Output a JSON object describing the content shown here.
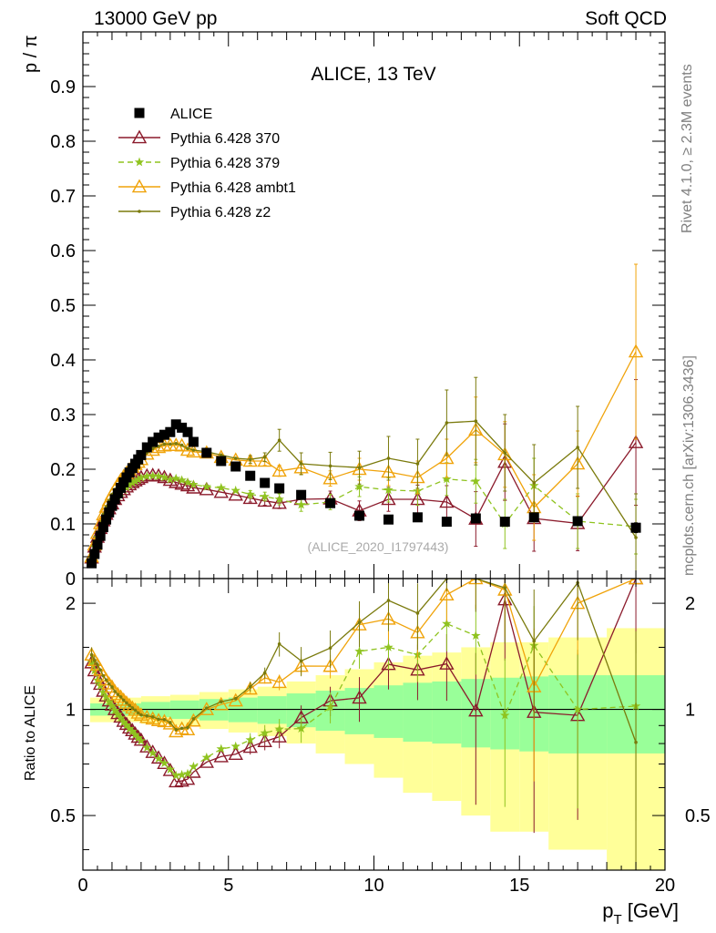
{
  "header": {
    "left": "13000 GeV pp",
    "right": "Soft QCD",
    "rivet_label": "Rivet 4.1.0, ≥ 2.3M events",
    "mcplots_label": "mcplots.cern.ch [arXiv:1306.3436]"
  },
  "chart_data": [
    {
      "type": "scatter",
      "title": "ALICE, 13 TeV",
      "ylabel": "p / π",
      "xlabel": "",
      "analysis_tag": "(ALICE_2020_I1797443)",
      "xlim": [
        0,
        20
      ],
      "ylim": [
        0,
        1.0
      ],
      "yticks": [
        0,
        0.1,
        0.2,
        0.3,
        0.4,
        0.5,
        0.6,
        0.7,
        0.8,
        0.9
      ],
      "ytick_labels": [
        "0",
        "0.1",
        "0.2",
        "0.3",
        "0.4",
        "0.5",
        "0.6",
        "0.7",
        "0.8",
        "0.9"
      ],
      "legend": [
        "ALICE",
        "Pythia 6.428 370",
        "Pythia 6.428 379",
        "Pythia 6.428 ambt1",
        "Pythia 6.428 z2"
      ],
      "x": [
        0.3,
        0.4,
        0.5,
        0.6,
        0.7,
        0.8,
        0.9,
        1.0,
        1.1,
        1.2,
        1.3,
        1.4,
        1.5,
        1.6,
        1.7,
        1.8,
        1.9,
        2.0,
        2.2,
        2.4,
        2.6,
        2.8,
        3.0,
        3.2,
        3.4,
        3.6,
        3.8,
        4.25,
        4.75,
        5.25,
        5.75,
        6.25,
        6.75,
        7.5,
        8.5,
        9.5,
        10.5,
        11.5,
        12.5,
        13.5,
        14.5,
        15.5,
        17.0,
        19.0
      ],
      "series": [
        {
          "name": "ALICE",
          "color": "#000000",
          "marker": "square",
          "values": [
            0.028,
            0.045,
            0.062,
            0.078,
            0.094,
            0.108,
            0.121,
            0.133,
            0.145,
            0.156,
            0.166,
            0.176,
            0.185,
            0.194,
            0.202,
            0.21,
            0.218,
            0.226,
            0.24,
            0.25,
            0.258,
            0.263,
            0.268,
            0.282,
            0.276,
            0.268,
            0.25,
            0.23,
            0.215,
            0.205,
            0.188,
            0.175,
            0.165,
            0.153,
            0.138,
            0.115,
            0.108,
            0.112,
            0.104,
            0.11,
            0.104,
            0.112,
            0.105,
            0.093
          ],
          "errors": [
            0.002,
            0.002,
            0.002,
            0.002,
            0.002,
            0.002,
            0.002,
            0.002,
            0.002,
            0.002,
            0.002,
            0.002,
            0.002,
            0.002,
            0.002,
            0.002,
            0.002,
            0.002,
            0.003,
            0.003,
            0.003,
            0.003,
            0.003,
            0.003,
            0.003,
            0.003,
            0.003,
            0.003,
            0.003,
            0.003,
            0.003,
            0.003,
            0.003,
            0.003,
            0.004,
            0.004,
            0.004,
            0.005,
            0.005,
            0.006,
            0.006,
            0.007,
            0.008,
            0.009
          ]
        },
        {
          "name": "Pythia 6.428 370",
          "color": "#8b1a2b",
          "marker": "open-triangle",
          "dash": "",
          "values": [
            0.038,
            0.058,
            0.076,
            0.092,
            0.106,
            0.118,
            0.128,
            0.137,
            0.145,
            0.152,
            0.158,
            0.163,
            0.168,
            0.172,
            0.176,
            0.179,
            0.182,
            0.185,
            0.188,
            0.189,
            0.188,
            0.185,
            0.18,
            0.176,
            0.173,
            0.17,
            0.166,
            0.163,
            0.158,
            0.153,
            0.147,
            0.142,
            0.138,
            0.145,
            0.146,
            0.124,
            0.145,
            0.145,
            0.14,
            0.109,
            0.213,
            0.11,
            0.101,
            0.249
          ],
          "errors": [
            0.002,
            0.002,
            0.002,
            0.002,
            0.002,
            0.002,
            0.002,
            0.002,
            0.002,
            0.002,
            0.002,
            0.002,
            0.002,
            0.002,
            0.002,
            0.002,
            0.002,
            0.002,
            0.002,
            0.002,
            0.002,
            0.003,
            0.003,
            0.003,
            0.003,
            0.003,
            0.003,
            0.004,
            0.005,
            0.006,
            0.007,
            0.008,
            0.01,
            0.012,
            0.014,
            0.018,
            0.022,
            0.026,
            0.03,
            0.05,
            0.07,
            0.06,
            0.05,
            0.115
          ]
        },
        {
          "name": "Pythia 6.428 379",
          "color": "#8fc31f",
          "marker": "star",
          "dash": "6,4",
          "values": [
            0.038,
            0.058,
            0.075,
            0.091,
            0.105,
            0.117,
            0.127,
            0.136,
            0.144,
            0.151,
            0.157,
            0.162,
            0.167,
            0.171,
            0.175,
            0.178,
            0.181,
            0.184,
            0.187,
            0.188,
            0.187,
            0.185,
            0.181,
            0.183,
            0.18,
            0.176,
            0.172,
            0.168,
            0.166,
            0.161,
            0.154,
            0.15,
            0.145,
            0.135,
            0.14,
            0.168,
            0.162,
            0.16,
            0.182,
            0.178,
            0.1,
            0.17,
            0.105,
            0.095
          ],
          "errors": [
            0.002,
            0.002,
            0.002,
            0.002,
            0.002,
            0.002,
            0.002,
            0.002,
            0.002,
            0.002,
            0.002,
            0.002,
            0.002,
            0.002,
            0.002,
            0.002,
            0.002,
            0.002,
            0.002,
            0.002,
            0.002,
            0.003,
            0.003,
            0.003,
            0.003,
            0.003,
            0.003,
            0.004,
            0.005,
            0.006,
            0.007,
            0.008,
            0.01,
            0.012,
            0.014,
            0.018,
            0.022,
            0.026,
            0.03,
            0.04,
            0.045,
            0.05,
            0.05,
            0.05
          ]
        },
        {
          "name": "Pythia 6.428 ambt1",
          "color": "#f0a30a",
          "marker": "open-triangle",
          "dash": "",
          "values": [
            0.04,
            0.062,
            0.083,
            0.101,
            0.117,
            0.131,
            0.143,
            0.154,
            0.163,
            0.172,
            0.18,
            0.187,
            0.193,
            0.199,
            0.204,
            0.209,
            0.213,
            0.218,
            0.228,
            0.235,
            0.24,
            0.243,
            0.244,
            0.244,
            0.243,
            0.235,
            0.232,
            0.23,
            0.222,
            0.217,
            0.215,
            0.215,
            0.197,
            0.203,
            0.183,
            0.2,
            0.195,
            0.185,
            0.22,
            0.272,
            0.227,
            0.13,
            0.21,
            0.415
          ],
          "errors": [
            0.002,
            0.002,
            0.002,
            0.002,
            0.002,
            0.002,
            0.002,
            0.002,
            0.002,
            0.002,
            0.002,
            0.002,
            0.002,
            0.002,
            0.002,
            0.002,
            0.002,
            0.002,
            0.002,
            0.002,
            0.002,
            0.003,
            0.003,
            0.003,
            0.003,
            0.003,
            0.003,
            0.004,
            0.005,
            0.006,
            0.007,
            0.008,
            0.01,
            0.012,
            0.014,
            0.02,
            0.025,
            0.03,
            0.035,
            0.06,
            0.06,
            0.06,
            0.06,
            0.16
          ]
        },
        {
          "name": "Pythia 6.428 z2",
          "color": "#7a7a0c",
          "marker": "dot",
          "dash": "",
          "values": [
            0.04,
            0.062,
            0.083,
            0.101,
            0.117,
            0.131,
            0.143,
            0.154,
            0.163,
            0.172,
            0.18,
            0.187,
            0.193,
            0.199,
            0.204,
            0.209,
            0.213,
            0.218,
            0.23,
            0.238,
            0.242,
            0.246,
            0.246,
            0.247,
            0.244,
            0.238,
            0.235,
            0.232,
            0.226,
            0.22,
            0.218,
            0.222,
            0.253,
            0.21,
            0.206,
            0.203,
            0.22,
            0.21,
            0.285,
            0.288,
            0.23,
            0.175,
            0.24,
            0.075
          ],
          "errors": [
            0.002,
            0.002,
            0.002,
            0.002,
            0.002,
            0.002,
            0.002,
            0.002,
            0.002,
            0.002,
            0.002,
            0.002,
            0.002,
            0.002,
            0.002,
            0.002,
            0.002,
            0.002,
            0.002,
            0.002,
            0.002,
            0.003,
            0.003,
            0.003,
            0.003,
            0.003,
            0.003,
            0.004,
            0.005,
            0.006,
            0.007,
            0.008,
            0.02,
            0.02,
            0.025,
            0.03,
            0.04,
            0.045,
            0.06,
            0.08,
            0.07,
            0.07,
            0.075,
            0.08
          ]
        }
      ]
    },
    {
      "type": "line",
      "title": "",
      "ylabel": "Ratio to ALICE",
      "xlabel": "p_T [GeV]",
      "xlim": [
        0,
        20
      ],
      "ylim": [
        0.35,
        2.35
      ],
      "xticks": [
        0,
        5,
        10,
        15,
        20
      ],
      "xtick_labels": [
        "0",
        "5",
        "10",
        "15",
        "20"
      ],
      "yticks": [
        0.5,
        1,
        2
      ],
      "ytick_labels": [
        "0.5",
        "1",
        "2"
      ],
      "bands": {
        "edges": [
          0.25,
          1.0,
          2.0,
          3.0,
          4.0,
          5.0,
          6.0,
          7.0,
          8.0,
          9.0,
          10.0,
          11.0,
          12.0,
          13.0,
          14.0,
          15.0,
          16.0,
          18.0,
          20.0
        ],
        "stat_halfwidth": [
          0.04,
          0.04,
          0.05,
          0.06,
          0.07,
          0.08,
          0.09,
          0.11,
          0.13,
          0.15,
          0.17,
          0.19,
          0.2,
          0.22,
          0.23,
          0.24,
          0.25,
          0.25
        ],
        "syst_halfwidth": [
          0.08,
          0.08,
          0.09,
          0.1,
          0.12,
          0.14,
          0.16,
          0.2,
          0.25,
          0.3,
          0.36,
          0.42,
          0.45,
          0.5,
          0.55,
          0.55,
          0.6,
          0.7
        ],
        "stat_color": "#99ff99",
        "syst_color": "#ffff99"
      }
    }
  ]
}
